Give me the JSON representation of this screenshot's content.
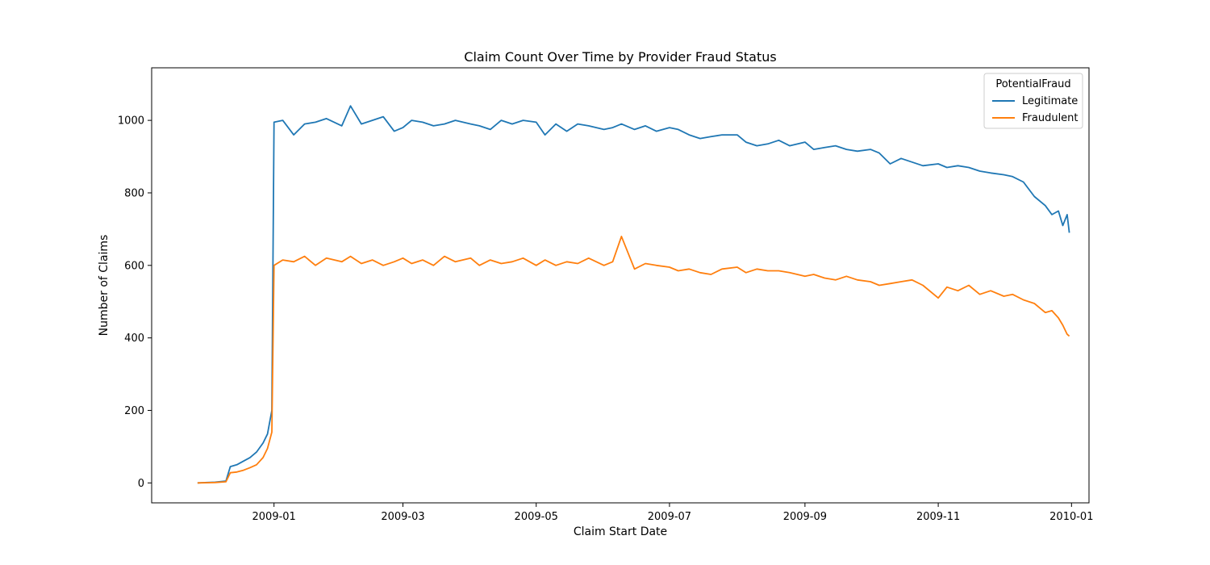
{
  "chart_data": {
    "type": "line",
    "title": "Claim Count Over Time by Provider Fraud Status",
    "xlabel": "Claim Start Date",
    "ylabel": "Number of Claims",
    "x_ticks": [
      "2009-01",
      "2009-03",
      "2009-05",
      "2009-07",
      "2009-09",
      "2009-11",
      "2010-01"
    ],
    "y_ticks": [
      0,
      200,
      400,
      600,
      800,
      1000
    ],
    "xlim": [
      "2008-11-06",
      "2010-01-09"
    ],
    "ylim": [
      -55,
      1145
    ],
    "legend": {
      "title": "PotentialFraud",
      "position": "top-right"
    },
    "grid": false,
    "series": [
      {
        "name": "Legitimate",
        "color": "#1f77b4",
        "x": [
          "2008-11-27",
          "2008-12-05",
          "2008-12-10",
          "2008-12-12",
          "2008-12-15",
          "2008-12-18",
          "2008-12-21",
          "2008-12-24",
          "2008-12-27",
          "2008-12-29",
          "2008-12-31",
          "2009-01-01",
          "2009-01-05",
          "2009-01-10",
          "2009-01-15",
          "2009-01-20",
          "2009-01-25",
          "2009-02-01",
          "2009-02-05",
          "2009-02-10",
          "2009-02-15",
          "2009-02-20",
          "2009-02-25",
          "2009-03-01",
          "2009-03-05",
          "2009-03-10",
          "2009-03-15",
          "2009-03-20",
          "2009-03-25",
          "2009-04-01",
          "2009-04-05",
          "2009-04-10",
          "2009-04-15",
          "2009-04-20",
          "2009-04-25",
          "2009-05-01",
          "2009-05-05",
          "2009-05-10",
          "2009-05-15",
          "2009-05-20",
          "2009-05-25",
          "2009-06-01",
          "2009-06-05",
          "2009-06-09",
          "2009-06-15",
          "2009-06-20",
          "2009-06-25",
          "2009-07-01",
          "2009-07-05",
          "2009-07-10",
          "2009-07-15",
          "2009-07-20",
          "2009-07-25",
          "2009-08-01",
          "2009-08-05",
          "2009-08-10",
          "2009-08-15",
          "2009-08-20",
          "2009-08-25",
          "2009-09-01",
          "2009-09-05",
          "2009-09-10",
          "2009-09-15",
          "2009-09-20",
          "2009-09-25",
          "2009-10-01",
          "2009-10-05",
          "2009-10-10",
          "2009-10-15",
          "2009-10-20",
          "2009-10-25",
          "2009-11-01",
          "2009-11-05",
          "2009-11-10",
          "2009-11-15",
          "2009-11-20",
          "2009-11-25",
          "2009-12-01",
          "2009-12-05",
          "2009-12-10",
          "2009-12-15",
          "2009-12-20",
          "2009-12-23",
          "2009-12-26",
          "2009-12-28",
          "2009-12-30",
          "2009-12-31"
        ],
        "values": [
          0,
          2,
          5,
          45,
          50,
          60,
          70,
          85,
          110,
          135,
          200,
          995,
          1000,
          960,
          990,
          995,
          1005,
          985,
          1040,
          990,
          1000,
          1010,
          970,
          980,
          1000,
          995,
          985,
          990,
          1000,
          990,
          985,
          975,
          1000,
          990,
          1000,
          995,
          960,
          990,
          970,
          990,
          985,
          975,
          980,
          990,
          975,
          985,
          970,
          980,
          975,
          960,
          950,
          955,
          960,
          960,
          940,
          930,
          935,
          945,
          930,
          940,
          920,
          925,
          930,
          920,
          915,
          920,
          910,
          880,
          895,
          885,
          875,
          880,
          870,
          875,
          870,
          860,
          855,
          850,
          845,
          830,
          790,
          765,
          740,
          750,
          710,
          740,
          690
        ]
      },
      {
        "name": "Fraudulent",
        "color": "#ff7f0e",
        "x": [
          "2008-11-27",
          "2008-12-05",
          "2008-12-10",
          "2008-12-12",
          "2008-12-15",
          "2008-12-18",
          "2008-12-21",
          "2008-12-24",
          "2008-12-27",
          "2008-12-29",
          "2008-12-31",
          "2009-01-01",
          "2009-01-05",
          "2009-01-10",
          "2009-01-15",
          "2009-01-20",
          "2009-01-25",
          "2009-02-01",
          "2009-02-05",
          "2009-02-10",
          "2009-02-15",
          "2009-02-20",
          "2009-02-25",
          "2009-03-01",
          "2009-03-05",
          "2009-03-10",
          "2009-03-15",
          "2009-03-20",
          "2009-03-25",
          "2009-04-01",
          "2009-04-05",
          "2009-04-10",
          "2009-04-15",
          "2009-04-20",
          "2009-04-25",
          "2009-05-01",
          "2009-05-05",
          "2009-05-10",
          "2009-05-15",
          "2009-05-20",
          "2009-05-25",
          "2009-06-01",
          "2009-06-05",
          "2009-06-09",
          "2009-06-15",
          "2009-06-20",
          "2009-06-25",
          "2009-07-01",
          "2009-07-05",
          "2009-07-10",
          "2009-07-15",
          "2009-07-20",
          "2009-07-25",
          "2009-08-01",
          "2009-08-05",
          "2009-08-10",
          "2009-08-15",
          "2009-08-20",
          "2009-08-25",
          "2009-09-01",
          "2009-09-05",
          "2009-09-10",
          "2009-09-15",
          "2009-09-20",
          "2009-09-25",
          "2009-10-01",
          "2009-10-05",
          "2009-10-10",
          "2009-10-15",
          "2009-10-20",
          "2009-10-25",
          "2009-11-01",
          "2009-11-05",
          "2009-11-10",
          "2009-11-15",
          "2009-11-20",
          "2009-11-25",
          "2009-12-01",
          "2009-12-05",
          "2009-12-10",
          "2009-12-15",
          "2009-12-20",
          "2009-12-23",
          "2009-12-26",
          "2009-12-28",
          "2009-12-30",
          "2009-12-31"
        ],
        "values": [
          0,
          1,
          3,
          28,
          30,
          35,
          42,
          50,
          70,
          95,
          140,
          600,
          615,
          610,
          625,
          600,
          620,
          610,
          625,
          605,
          615,
          600,
          610,
          620,
          605,
          615,
          600,
          625,
          610,
          620,
          600,
          615,
          605,
          610,
          620,
          600,
          615,
          600,
          610,
          605,
          620,
          600,
          610,
          680,
          590,
          605,
          600,
          595,
          585,
          590,
          580,
          575,
          590,
          595,
          580,
          590,
          585,
          585,
          580,
          570,
          575,
          565,
          560,
          570,
          560,
          555,
          545,
          550,
          555,
          560,
          545,
          510,
          540,
          530,
          545,
          520,
          530,
          515,
          520,
          505,
          495,
          470,
          475,
          455,
          435,
          410,
          405
        ]
      }
    ]
  }
}
